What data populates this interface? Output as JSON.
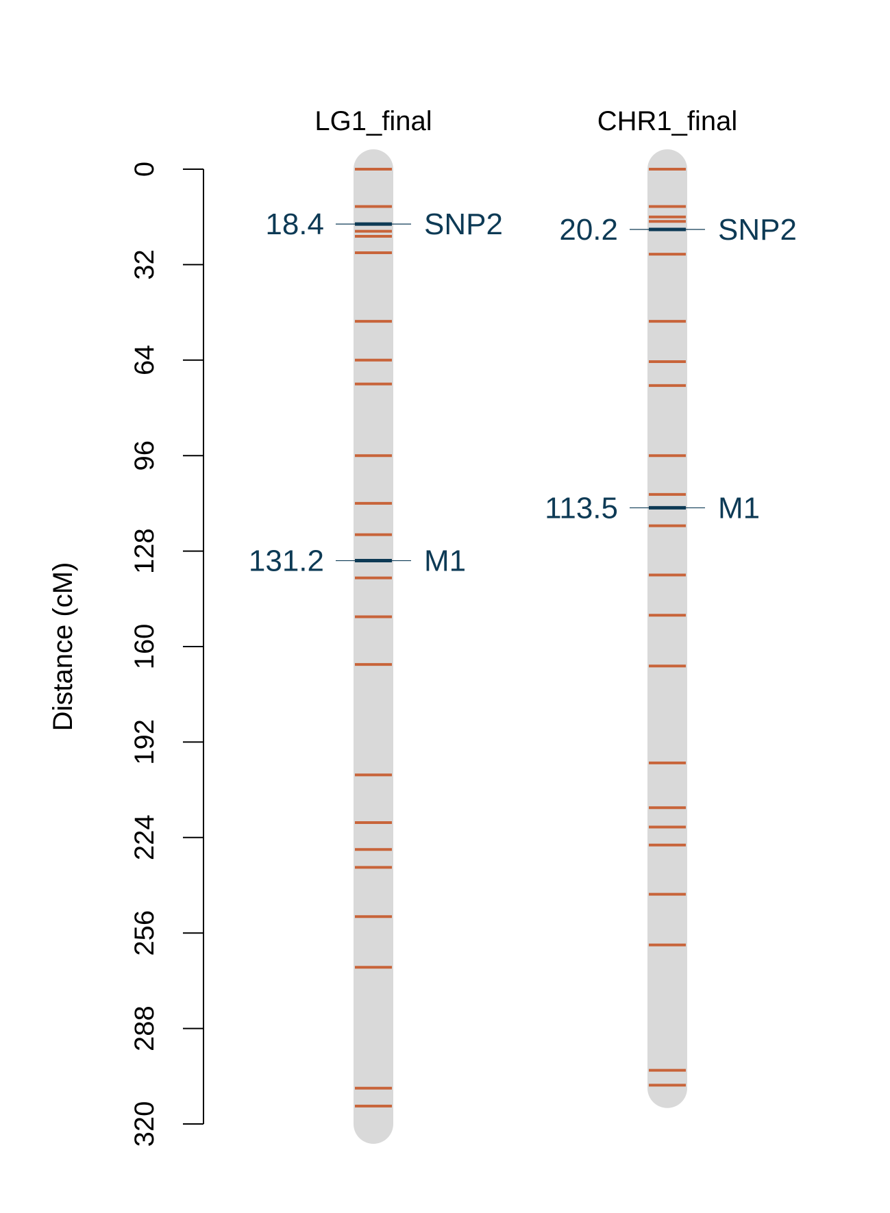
{
  "chart_data": {
    "type": "linkage-map",
    "ylabel": "Distance (cM)",
    "y_ticks": [
      0,
      32,
      64,
      96,
      128,
      160,
      192,
      224,
      256,
      288,
      320
    ],
    "ylim": [
      0,
      320
    ],
    "colors": {
      "chromosome_fill": "#d9d9d9",
      "marker": "#c8643a",
      "highlight": "#0d3a55",
      "axis": "#000000"
    },
    "linkage_groups": [
      {
        "name": "LG1_final",
        "length": 320,
        "markers": [
          0,
          12.5,
          18.4,
          20.8,
          22.5,
          28,
          51,
          64,
          72,
          96,
          112,
          122.5,
          131.2,
          137,
          150,
          166,
          203,
          219,
          228,
          234,
          250.5,
          267.5,
          308,
          314
        ],
        "highlights": [
          {
            "name": "SNP2",
            "position": 18.4,
            "position_label": "18.4"
          },
          {
            "name": "M1",
            "position": 131.2,
            "position_label": "131.2"
          }
        ]
      },
      {
        "name": "CHR1_final",
        "length": 308,
        "markers": [
          0,
          12.5,
          16,
          17.5,
          20.2,
          28.5,
          51,
          64.5,
          72.5,
          96,
          109,
          113.5,
          119.5,
          136,
          149.5,
          166.5,
          199,
          214,
          220.5,
          226.5,
          243,
          260,
          302,
          307
        ],
        "highlights": [
          {
            "name": "SNP2",
            "position": 20.2,
            "position_label": "20.2"
          },
          {
            "name": "M1",
            "position": 113.5,
            "position_label": "113.5"
          }
        ]
      }
    ]
  }
}
